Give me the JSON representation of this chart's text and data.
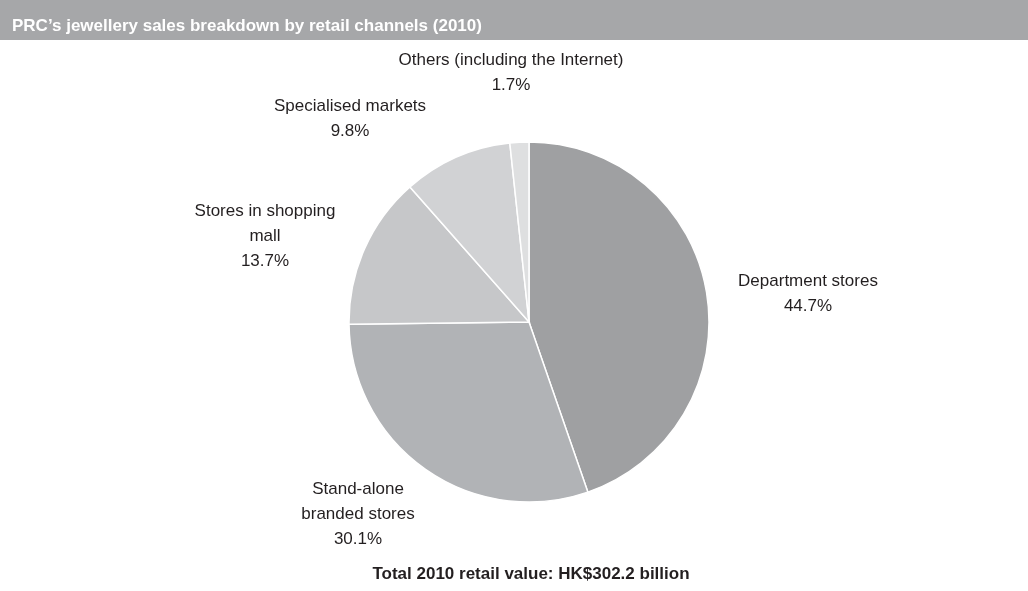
{
  "chart_data": {
    "type": "pie",
    "title": "PRC’s jewellery sales breakdown by retail channels (2010)",
    "categories": [
      "Department stores",
      "Stand-alone branded stores",
      "Stores in shopping mall",
      "Specialised markets",
      "Others (including the Internet)"
    ],
    "values": [
      44.7,
      30.1,
      13.7,
      9.8,
      1.7
    ],
    "value_labels": [
      "44.7%",
      "30.1%",
      "13.7%",
      "9.8%",
      "1.7%"
    ],
    "colors": [
      "#9fa0a2",
      "#b1b3b6",
      "#c6c7c9",
      "#d1d2d4",
      "#dedfe0"
    ],
    "annotations": [
      "Total 2010 retail value: HK$302.2 billion"
    ]
  }
}
